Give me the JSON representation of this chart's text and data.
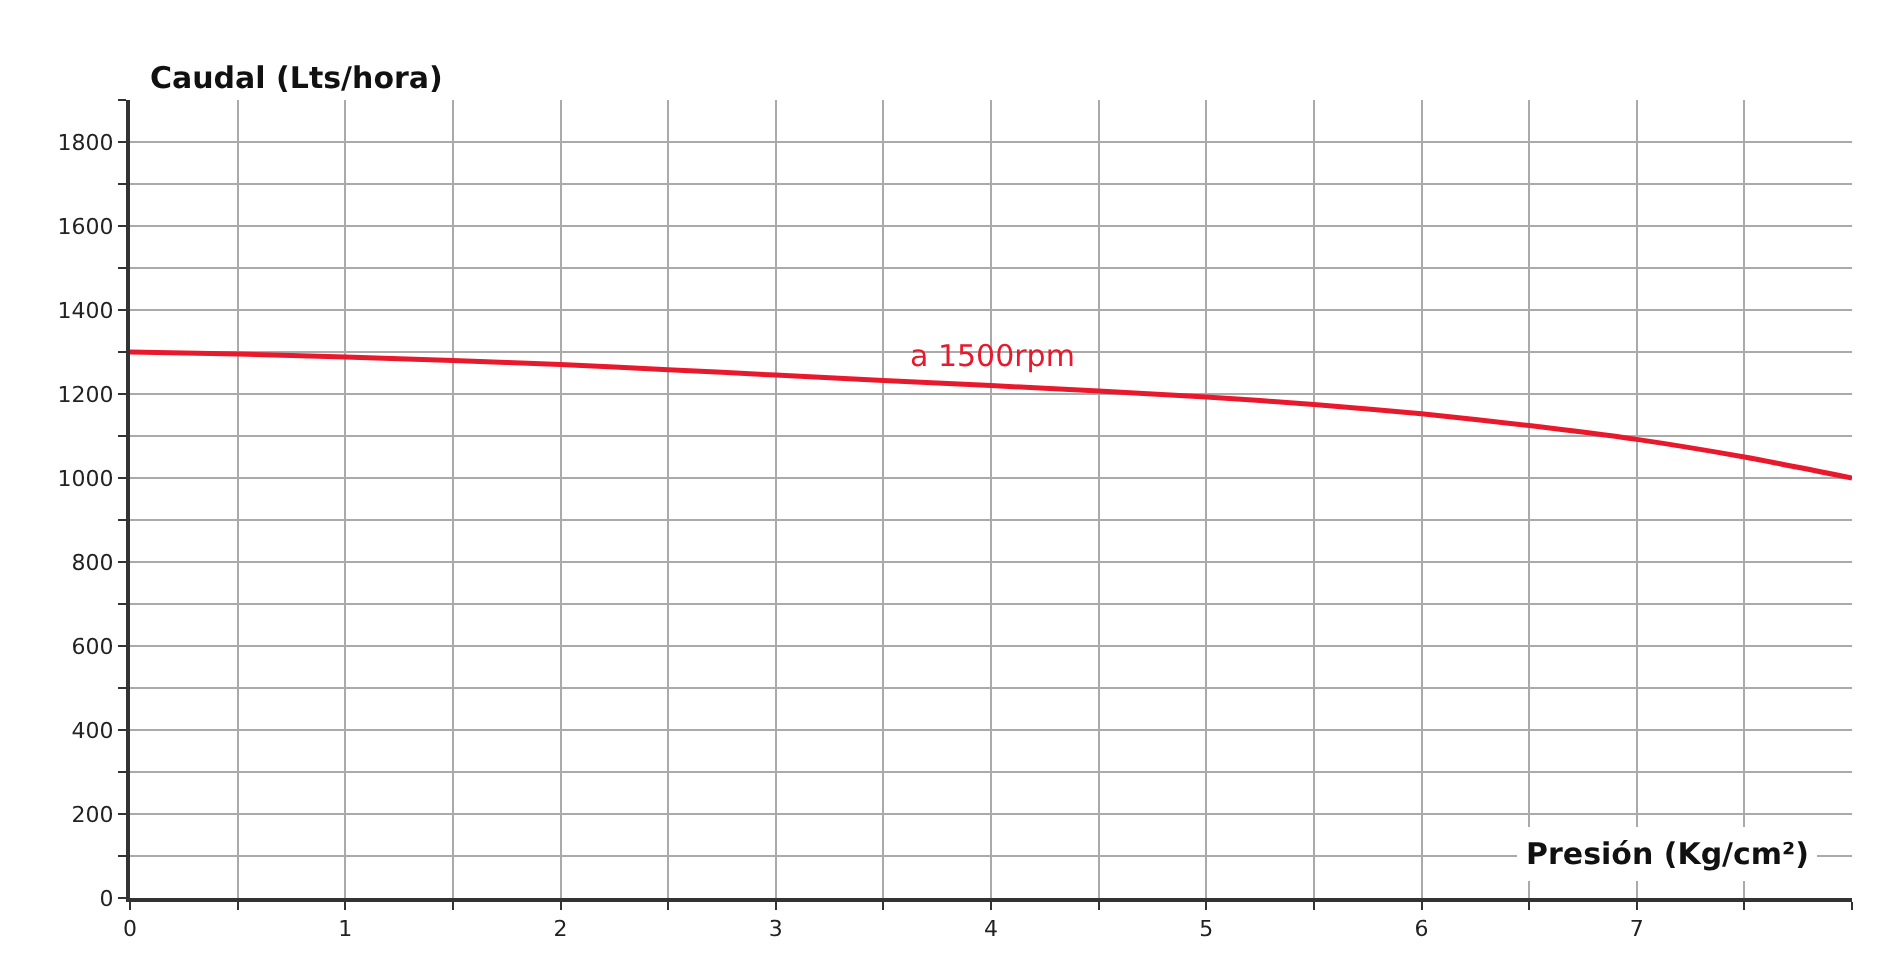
{
  "chart_data": {
    "type": "line",
    "xlabel": "Presión (Kg/cm²)",
    "ylabel": "Caudal (Lts/hora)",
    "x": [
      0,
      0.5,
      1,
      1.5,
      2,
      2.5,
      3,
      3.5,
      4,
      4.5,
      5,
      5.5,
      6,
      6.5,
      7,
      7.5,
      8
    ],
    "series": [
      {
        "name": "a 1500rpm",
        "color": "#e8192c",
        "values": [
          1300,
          1295,
          1288,
          1280,
          1270,
          1258,
          1245,
          1232,
          1220,
          1207,
          1193,
          1175,
          1153,
          1125,
          1092,
          1050,
          1000
        ]
      }
    ],
    "xlim": [
      0,
      8
    ],
    "ylim": [
      0,
      1900
    ],
    "xticks": [
      0,
      {
        "value": 0.5,
        "label": null
      },
      1,
      {
        "value": 1.5,
        "label": null
      },
      2,
      {
        "value": 2.5,
        "label": null
      },
      3,
      {
        "value": 3.5,
        "label": null
      },
      4,
      {
        "value": 4.5,
        "label": null
      },
      5,
      {
        "value": 5.5,
        "label": null
      },
      6,
      {
        "value": 6.5,
        "label": null
      },
      7,
      {
        "value": 7.5,
        "label": null
      },
      {
        "value": 8,
        "label": null
      }
    ],
    "yticks": [
      0,
      {
        "value": 100,
        "label": null
      },
      200,
      {
        "value": 300,
        "label": null
      },
      400,
      {
        "value": 500,
        "label": null
      },
      600,
      {
        "value": 700,
        "label": null
      },
      800,
      {
        "value": 900,
        "label": null
      },
      1000,
      {
        "value": 1100,
        "label": null
      },
      1200,
      {
        "value": 1300,
        "label": null
      },
      1400,
      {
        "value": 1500,
        "label": null
      },
      1600,
      {
        "value": 1700,
        "label": null
      },
      1800,
      {
        "value": 1900,
        "label": null
      }
    ],
    "grid": true,
    "legend": false,
    "marker": "none",
    "line_style": "solid"
  }
}
